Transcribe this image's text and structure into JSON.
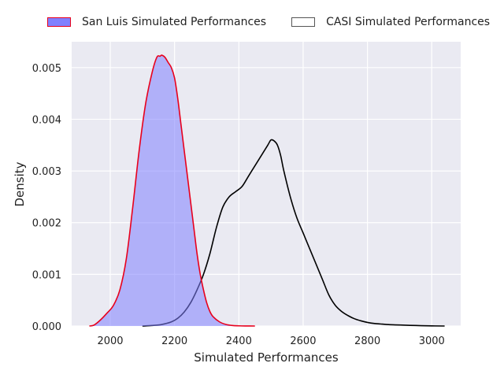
{
  "chart_data": {
    "type": "area",
    "xlabel": "Simulated Performances",
    "ylabel": "Density",
    "xlim": [
      1880,
      3090
    ],
    "ylim": [
      0,
      0.0055
    ],
    "xticks": [
      2000,
      2200,
      2400,
      2600,
      2800,
      3000
    ],
    "xtick_labels": [
      "2000",
      "2200",
      "2400",
      "2600",
      "2800",
      "3000"
    ],
    "yticks": [
      0.0,
      0.001,
      0.002,
      0.003,
      0.004,
      0.005
    ],
    "ytick_labels": [
      "0.000",
      "0.001",
      "0.002",
      "0.003",
      "0.004",
      "0.005"
    ],
    "grid": true,
    "legend_position": "top",
    "series": [
      {
        "name": "San Luis Simulated Performances",
        "fill": "#8080ff",
        "line": "#e8001c",
        "filled": true,
        "x": [
          1935,
          1950,
          1970,
          1990,
          2010,
          2030,
          2050,
          2070,
          2090,
          2110,
          2130,
          2145,
          2155,
          2160,
          2170,
          2180,
          2190,
          2200,
          2210,
          2220,
          2230,
          2240,
          2250,
          2260,
          2270,
          2280,
          2290,
          2300,
          2310,
          2320,
          2340,
          2360,
          2380,
          2400,
          2420,
          2450
        ],
        "y": [
          0,
          2e-05,
          0.00012,
          0.00025,
          0.0004,
          0.0007,
          0.0013,
          0.0023,
          0.0034,
          0.0043,
          0.0049,
          0.0052,
          0.00522,
          0.00524,
          0.0052,
          0.0051,
          0.005,
          0.0048,
          0.0044,
          0.0039,
          0.0034,
          0.0029,
          0.0024,
          0.0019,
          0.0014,
          0.001,
          0.0007,
          0.00045,
          0.00028,
          0.00018,
          8e-05,
          3e-05,
          1e-05,
          4e-06,
          1e-06,
          0
        ]
      },
      {
        "name": "CASI Simulated Performances",
        "fill": "none",
        "line": "#000000",
        "filled": false,
        "x": [
          2100,
          2130,
          2160,
          2190,
          2210,
          2230,
          2250,
          2270,
          2290,
          2310,
          2330,
          2350,
          2370,
          2390,
          2410,
          2430,
          2450,
          2470,
          2490,
          2500,
          2510,
          2520,
          2530,
          2540,
          2560,
          2580,
          2600,
          2620,
          2640,
          2660,
          2680,
          2700,
          2720,
          2740,
          2760,
          2780,
          2800,
          2820,
          2840,
          2860,
          2900,
          2950,
          3000,
          3040
        ],
        "y": [
          0,
          1e-05,
          3e-05,
          8e-05,
          0.00015,
          0.00027,
          0.00045,
          0.0007,
          0.001,
          0.0014,
          0.0019,
          0.0023,
          0.0025,
          0.0026,
          0.0027,
          0.0029,
          0.0031,
          0.0033,
          0.0035,
          0.0036,
          0.00358,
          0.0035,
          0.0033,
          0.003,
          0.0025,
          0.0021,
          0.0018,
          0.0015,
          0.0012,
          0.0009,
          0.0006,
          0.0004,
          0.00028,
          0.0002,
          0.00014,
          0.0001,
          7e-05,
          5e-05,
          4e-05,
          3e-05,
          2e-05,
          1e-05,
          3e-06,
          0
        ]
      }
    ]
  }
}
